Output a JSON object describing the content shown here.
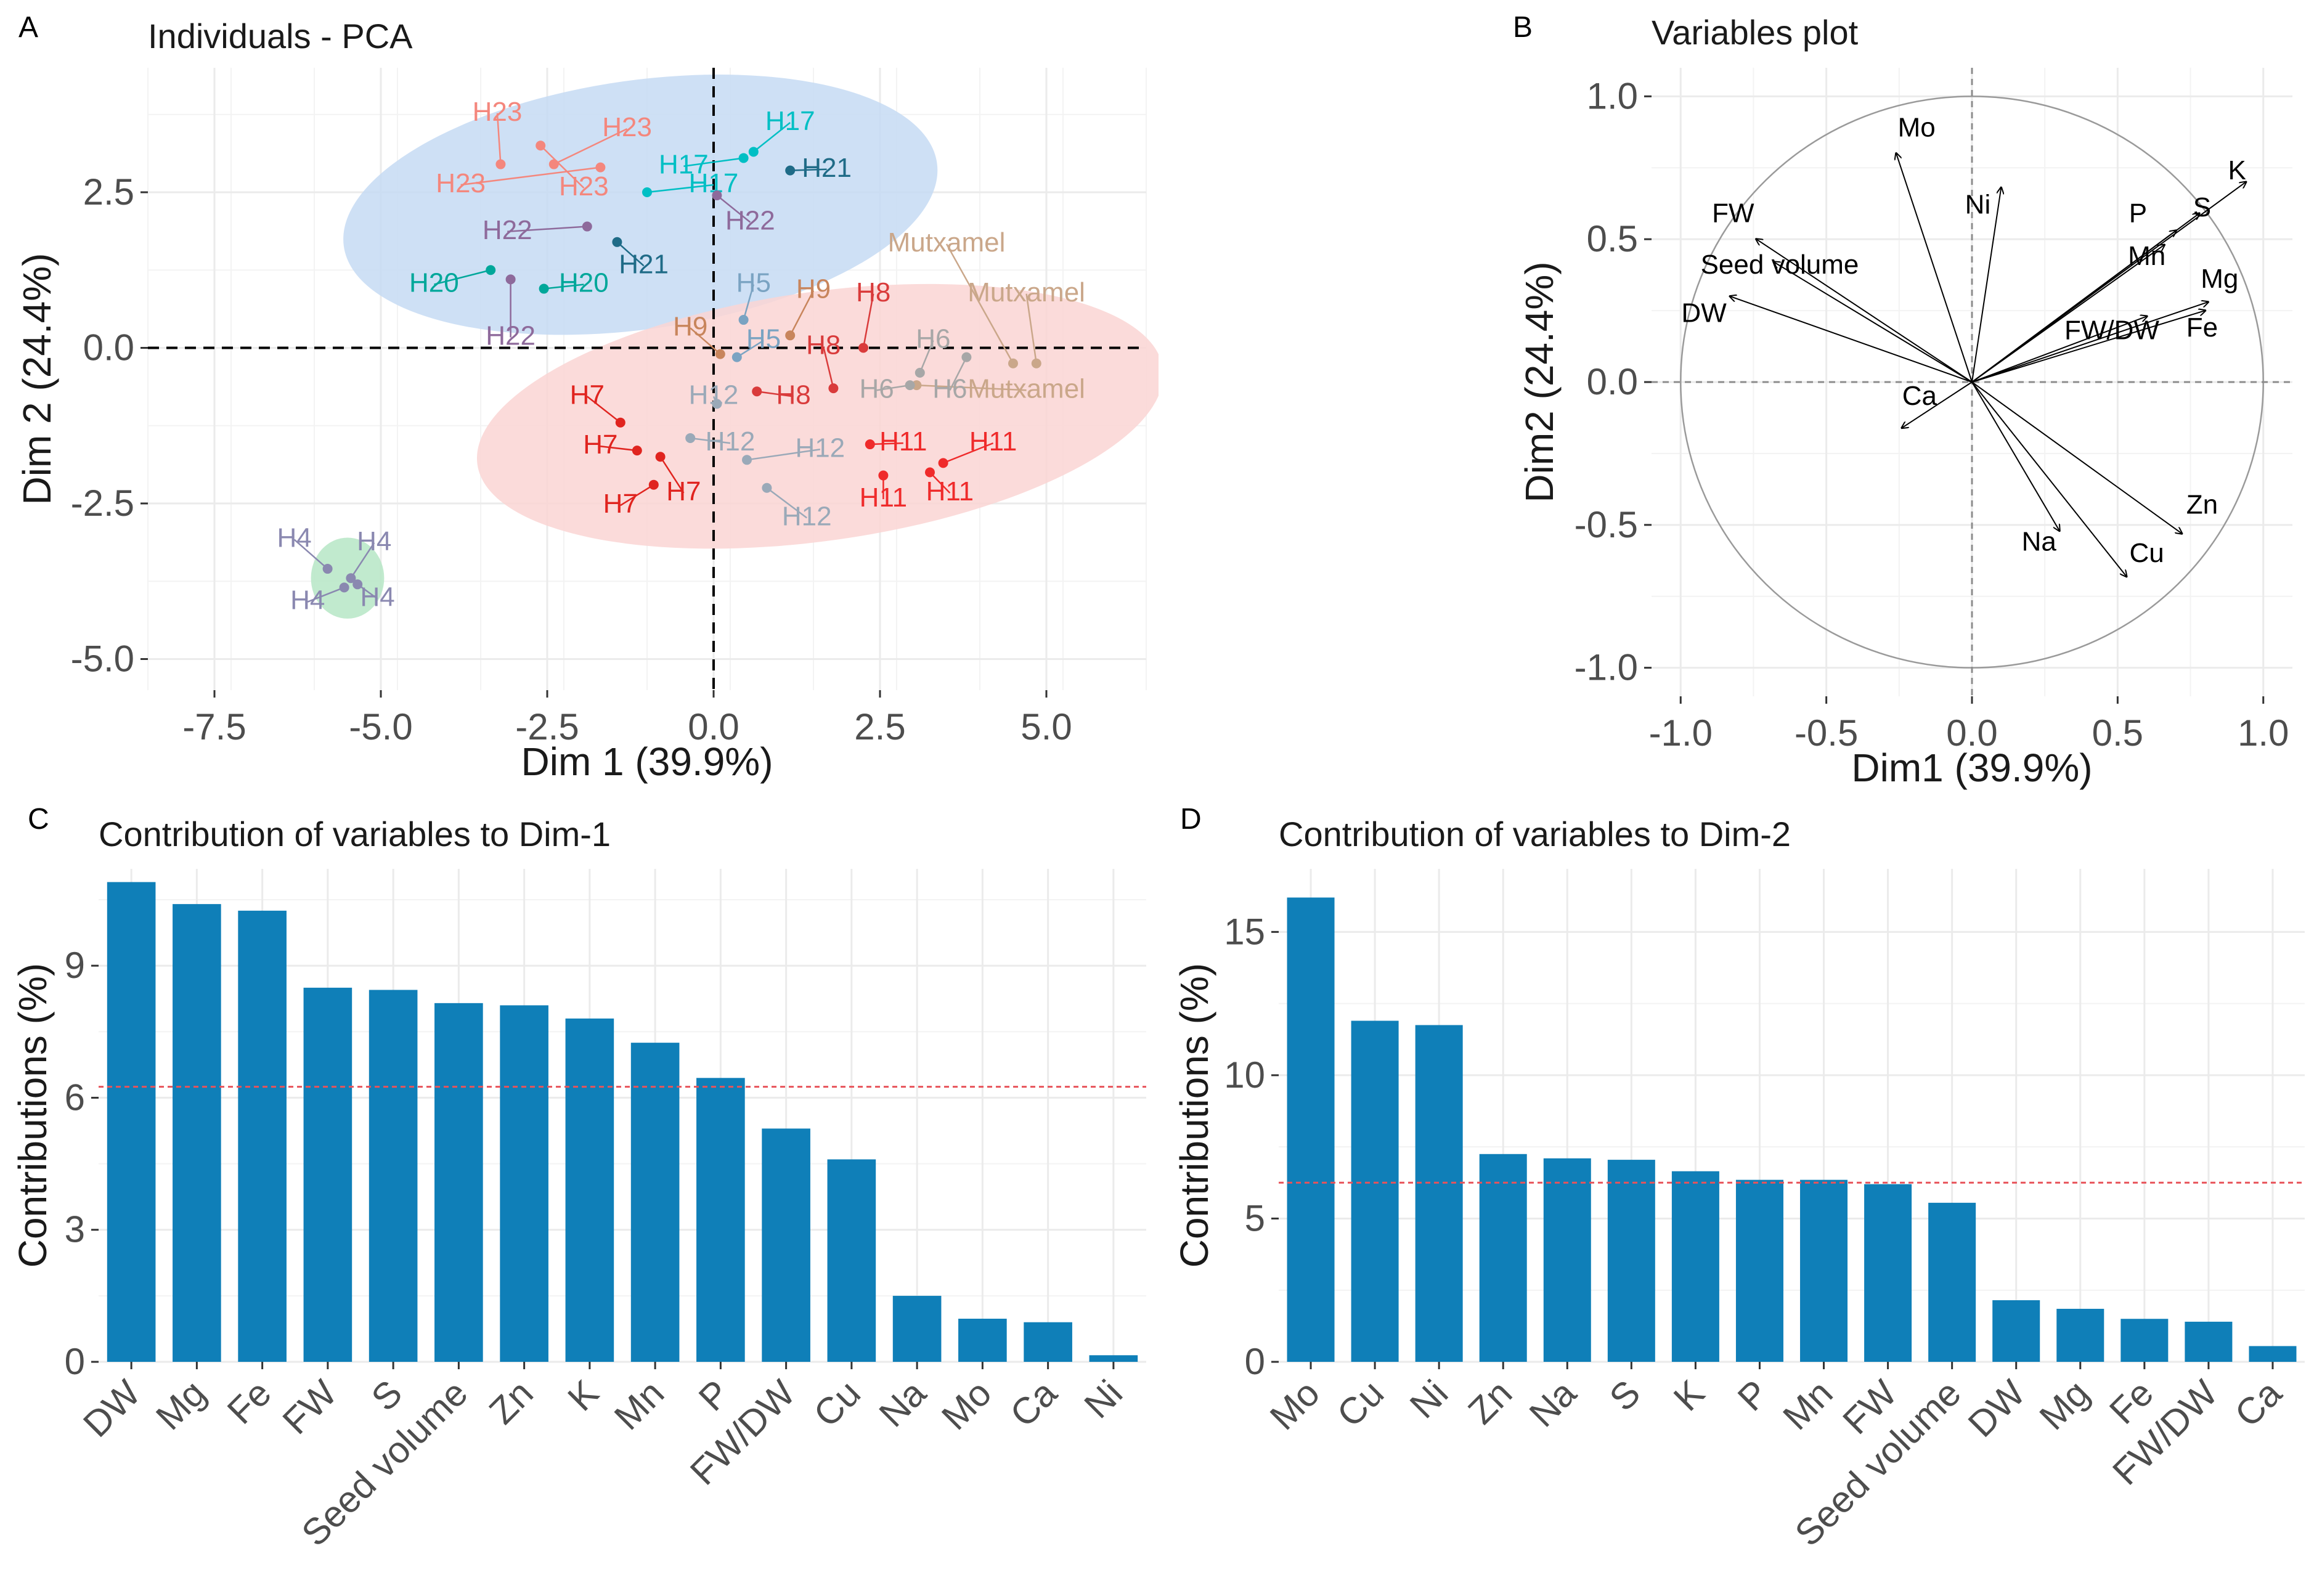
{
  "chart_data": [
    {
      "panel": "A",
      "type": "scatter",
      "title": "Individuals - PCA",
      "xlabel": "Dim 1 (39.9%)",
      "ylabel": "Dim 2 (24.4%)",
      "xlim": [
        -8.5,
        6.5
      ],
      "ylim": [
        -5.5,
        4.5
      ],
      "xticks": [
        -7.5,
        -5.0,
        -2.5,
        0.0,
        2.5,
        5.0
      ],
      "yticks": [
        -5.0,
        -2.5,
        0.0,
        2.5
      ],
      "xtick_labels": [
        "-7.5",
        "-5.0",
        "-2.5",
        "0.0",
        "2.5",
        "5.0"
      ],
      "ytick_labels": [
        "-5.0",
        "-2.5",
        "0.0",
        "2.5"
      ],
      "ellipses": [
        {
          "name": "cluster-blue",
          "center": [
            -1.1,
            2.3
          ],
          "rx": 4.5,
          "ry": 2.0,
          "angle": 8,
          "color": "#c6dbf3"
        },
        {
          "name": "cluster-red",
          "center": [
            1.6,
            -1.1
          ],
          "rx": 5.2,
          "ry": 2.0,
          "angle": 8,
          "color": "#fad5d3"
        },
        {
          "name": "cluster-green",
          "center": [
            -5.5,
            -3.7
          ],
          "rx": 0.55,
          "ry": 0.65,
          "angle": 0,
          "color": "#b6e6c6"
        }
      ],
      "points": [
        {
          "label": "H23",
          "x": -3.2,
          "y": 2.95,
          "lx": -3.25,
          "ly": 3.65,
          "color": "#f4877d"
        },
        {
          "label": "H23",
          "x": -2.4,
          "y": 2.95,
          "lx": -1.3,
          "ly": 3.4,
          "color": "#f4877d"
        },
        {
          "label": "H23",
          "x": -1.7,
          "y": 2.9,
          "lx": -3.8,
          "ly": 2.5,
          "color": "#f4877d"
        },
        {
          "label": "H23",
          "x": -2.6,
          "y": 3.25,
          "lx": -1.95,
          "ly": 2.45,
          "color": "#f4877d"
        },
        {
          "label": "H17",
          "x": 0.6,
          "y": 3.15,
          "lx": 1.15,
          "ly": 3.5,
          "color": "#00bfc4"
        },
        {
          "label": "H17",
          "x": 0.45,
          "y": 3.05,
          "lx": -0.45,
          "ly": 2.8,
          "color": "#00bfc4"
        },
        {
          "label": "H17",
          "x": -1.0,
          "y": 2.5,
          "lx": 0.0,
          "ly": 2.5,
          "color": "#00bfc4"
        },
        {
          "label": "H21",
          "x": 1.15,
          "y": 2.85,
          "lx": 1.7,
          "ly": 2.75,
          "color": "#1f6b87"
        },
        {
          "label": "H21",
          "x": -1.45,
          "y": 1.7,
          "lx": -1.05,
          "ly": 1.2,
          "color": "#1f6b87"
        },
        {
          "label": "H22",
          "x": 0.05,
          "y": 2.45,
          "lx": 0.55,
          "ly": 1.9,
          "color": "#8e6a9b"
        },
        {
          "label": "H22",
          "x": -1.9,
          "y": 1.95,
          "lx": -3.1,
          "ly": 1.75,
          "color": "#8e6a9b"
        },
        {
          "label": "H22",
          "x": -3.05,
          "y": 1.1,
          "lx": -3.05,
          "ly": 0.05,
          "color": "#8e6a9b"
        },
        {
          "label": "H20",
          "x": -3.35,
          "y": 1.25,
          "lx": -4.2,
          "ly": 0.9,
          "color": "#00a79a"
        },
        {
          "label": "H20",
          "x": -2.55,
          "y": 0.95,
          "lx": -1.95,
          "ly": 0.9,
          "color": "#00a79a"
        },
        {
          "label": "H5",
          "x": 0.45,
          "y": 0.45,
          "lx": 0.6,
          "ly": 0.9,
          "color": "#7aa3c2"
        },
        {
          "label": "H5",
          "x": 0.35,
          "y": -0.15,
          "lx": 0.75,
          "ly": 0.0,
          "color": "#7aa3c2"
        },
        {
          "label": "H9",
          "x": 1.15,
          "y": 0.2,
          "lx": 1.5,
          "ly": 0.8,
          "color": "#c8855c"
        },
        {
          "label": "H9",
          "x": 0.1,
          "y": -0.1,
          "lx": -0.35,
          "ly": 0.2,
          "color": "#c8855c"
        },
        {
          "label": "H8",
          "x": 2.25,
          "y": 0.0,
          "lx": 2.4,
          "ly": 0.75,
          "color": "#d93b3b"
        },
        {
          "label": "H8",
          "x": 1.8,
          "y": -0.65,
          "lx": 1.65,
          "ly": -0.1,
          "color": "#d93b3b"
        },
        {
          "label": "H8",
          "x": 0.65,
          "y": -0.7,
          "lx": 1.2,
          "ly": -0.9,
          "color": "#d93b3b"
        },
        {
          "label": "Mutxamel",
          "x": 4.5,
          "y": -0.25,
          "lx": 3.5,
          "ly": 1.55,
          "color": "#caa78a"
        },
        {
          "label": "Mutxamel",
          "x": 4.85,
          "y": -0.25,
          "lx": 4.7,
          "ly": 0.75,
          "color": "#caa78a"
        },
        {
          "label": "Mutxamel",
          "x": 3.05,
          "y": -0.6,
          "lx": 4.7,
          "ly": -0.8,
          "color": "#caa78a"
        },
        {
          "label": "H6",
          "x": 3.1,
          "y": -0.4,
          "lx": 3.3,
          "ly": 0.0,
          "color": "#a7a7a7"
        },
        {
          "label": "H6",
          "x": 2.95,
          "y": -0.6,
          "lx": 2.45,
          "ly": -0.8,
          "color": "#a7a7a7"
        },
        {
          "label": "H6",
          "x": 3.8,
          "y": -0.15,
          "lx": 3.55,
          "ly": -0.8,
          "color": "#a7a7a7"
        },
        {
          "label": "H7",
          "x": -1.4,
          "y": -1.2,
          "lx": -1.9,
          "ly": -0.9,
          "color": "#e0241f"
        },
        {
          "label": "H7",
          "x": -1.15,
          "y": -1.65,
          "lx": -1.7,
          "ly": -1.7,
          "color": "#e0241f"
        },
        {
          "label": "H7",
          "x": -0.8,
          "y": -1.75,
          "lx": -0.45,
          "ly": -2.45,
          "color": "#e0241f"
        },
        {
          "label": "H7",
          "x": -0.9,
          "y": -2.2,
          "lx": -1.4,
          "ly": -2.65,
          "color": "#e0241f"
        },
        {
          "label": "H12",
          "x": -0.35,
          "y": -1.45,
          "lx": 0.25,
          "ly": -1.65,
          "color": "#9aa9b8"
        },
        {
          "label": "H12",
          "x": 0.5,
          "y": -1.8,
          "lx": 1.6,
          "ly": -1.75,
          "color": "#9aa9b8"
        },
        {
          "label": "H12",
          "x": 0.8,
          "y": -2.25,
          "lx": 1.4,
          "ly": -2.85,
          "color": "#9aa9b8"
        },
        {
          "label": "H12",
          "x": 0.05,
          "y": -0.9,
          "lx": 0.0,
          "ly": -0.9,
          "color": "#9aa9b8"
        },
        {
          "label": "H11",
          "x": 2.35,
          "y": -1.55,
          "lx": 2.85,
          "ly": -1.65,
          "color": "#ef2b2b"
        },
        {
          "label": "H11",
          "x": 2.55,
          "y": -2.05,
          "lx": 2.55,
          "ly": -2.55,
          "color": "#ef2b2b"
        },
        {
          "label": "H11",
          "x": 3.25,
          "y": -2.0,
          "lx": 3.55,
          "ly": -2.45,
          "color": "#ef2b2b"
        },
        {
          "label": "H11",
          "x": 3.45,
          "y": -1.85,
          "lx": 4.2,
          "ly": -1.65,
          "color": "#ef2b2b"
        },
        {
          "label": "H4",
          "x": -5.8,
          "y": -3.55,
          "lx": -6.3,
          "ly": -3.2,
          "color": "#8a88b0"
        },
        {
          "label": "H4",
          "x": -5.45,
          "y": -3.7,
          "lx": -5.1,
          "ly": -3.25,
          "color": "#8a88b0"
        },
        {
          "label": "H4",
          "x": -5.55,
          "y": -3.85,
          "lx": -6.1,
          "ly": -4.2,
          "color": "#8a88b0"
        },
        {
          "label": "H4",
          "x": -5.35,
          "y": -3.8,
          "lx": -5.05,
          "ly": -4.15,
          "color": "#8a88b0"
        }
      ]
    },
    {
      "panel": "B",
      "type": "scatter",
      "title": "Variables plot",
      "xlabel": "Dim1 (39.9%)",
      "ylabel": "Dim2 (24.4%)",
      "xlim": [
        -1.1,
        1.1
      ],
      "ylim": [
        -1.1,
        1.1
      ],
      "xticks": [
        -1.0,
        -0.5,
        0.0,
        0.5,
        1.0
      ],
      "yticks": [
        -1.0,
        -0.5,
        0.0,
        0.5,
        1.0
      ],
      "xtick_labels": [
        "-1.0",
        "-0.5",
        "0.0",
        "0.5",
        "1.0"
      ],
      "ytick_labels": [
        "-1.0",
        "-0.5",
        "0.0",
        "0.5",
        "1.0"
      ],
      "vectors": [
        {
          "name": "Mo",
          "x": -0.26,
          "y": 0.8,
          "lx": -0.19,
          "ly": 0.86
        },
        {
          "name": "Ni",
          "x": 0.1,
          "y": 0.68,
          "lx": 0.02,
          "ly": 0.59
        },
        {
          "name": "FW",
          "x": -0.74,
          "y": 0.5,
          "lx": -0.82,
          "ly": 0.56
        },
        {
          "name": "Seed volume",
          "x": -0.68,
          "y": 0.42,
          "lx": -0.66,
          "ly": 0.38
        },
        {
          "name": "DW",
          "x": -0.83,
          "y": 0.3,
          "lx": -0.92,
          "ly": 0.21
        },
        {
          "name": "Ca",
          "x": -0.24,
          "y": -0.16,
          "lx": -0.18,
          "ly": -0.08
        },
        {
          "name": "P",
          "x": 0.7,
          "y": 0.53,
          "lx": 0.57,
          "ly": 0.56
        },
        {
          "name": "S",
          "x": 0.78,
          "y": 0.59,
          "lx": 0.79,
          "ly": 0.58
        },
        {
          "name": "K",
          "x": 0.94,
          "y": 0.7,
          "lx": 0.91,
          "ly": 0.71
        },
        {
          "name": "Mn",
          "x": 0.66,
          "y": 0.48,
          "lx": 0.6,
          "ly": 0.41
        },
        {
          "name": "Mg",
          "x": 0.81,
          "y": 0.28,
          "lx": 0.85,
          "ly": 0.33
        },
        {
          "name": "FW/DW",
          "x": 0.6,
          "y": 0.23,
          "lx": 0.48,
          "ly": 0.15
        },
        {
          "name": "Fe",
          "x": 0.8,
          "y": 0.25,
          "lx": 0.79,
          "ly": 0.16
        },
        {
          "name": "Na",
          "x": 0.3,
          "y": -0.52,
          "lx": 0.23,
          "ly": -0.59
        },
        {
          "name": "Cu",
          "x": 0.53,
          "y": -0.68,
          "lx": 0.6,
          "ly": -0.63
        },
        {
          "name": "Zn",
          "x": 0.72,
          "y": -0.53,
          "lx": 0.79,
          "ly": -0.46
        }
      ]
    },
    {
      "panel": "C",
      "type": "bar",
      "title": "Contribution of variables to Dim-1",
      "xlabel": "",
      "ylabel": "Contributions (%)",
      "ylim": [
        0,
        11.2
      ],
      "yticks": [
        0,
        3,
        6,
        9
      ],
      "ytick_labels": [
        "0",
        "3",
        "6",
        "9"
      ],
      "reference_line": 6.25,
      "categories": [
        "DW",
        "Mg",
        "Fe",
        "FW",
        "S",
        "Seed volume",
        "Zn",
        "K",
        "Mn",
        "P",
        "FW/DW",
        "Cu",
        "Na",
        "Mo",
        "Ca",
        "Ni"
      ],
      "values": [
        10.9,
        10.4,
        10.25,
        8.5,
        8.45,
        8.15,
        8.1,
        7.8,
        7.25,
        6.45,
        5.3,
        4.6,
        1.5,
        0.98,
        0.9,
        0.15
      ]
    },
    {
      "panel": "D",
      "type": "bar",
      "title": "Contribution of variables to Dim-2",
      "xlabel": "",
      "ylabel": "Contributions (%)",
      "ylim": [
        0,
        17.2
      ],
      "yticks": [
        0,
        5,
        10,
        15
      ],
      "ytick_labels": [
        "0",
        "5",
        "10",
        "15"
      ],
      "reference_line": 6.25,
      "categories": [
        "Mo",
        "Cu",
        "Ni",
        "Zn",
        "Na",
        "S",
        "K",
        "P",
        "Mn",
        "FW",
        "Seed volume",
        "DW",
        "Mg",
        "Fe",
        "FW/DW",
        "Ca"
      ],
      "values": [
        16.2,
        11.9,
        11.75,
        7.25,
        7.1,
        7.05,
        6.65,
        6.35,
        6.35,
        6.2,
        5.55,
        2.15,
        1.85,
        1.5,
        1.4,
        0.55
      ]
    }
  ],
  "panel_labels": [
    "A",
    "B",
    "C",
    "D"
  ],
  "colors": {
    "bar": "#0f7fb8",
    "refline": "#e8535a",
    "axis_text": "#4d4d4d",
    "grid": "#ebebeb"
  }
}
